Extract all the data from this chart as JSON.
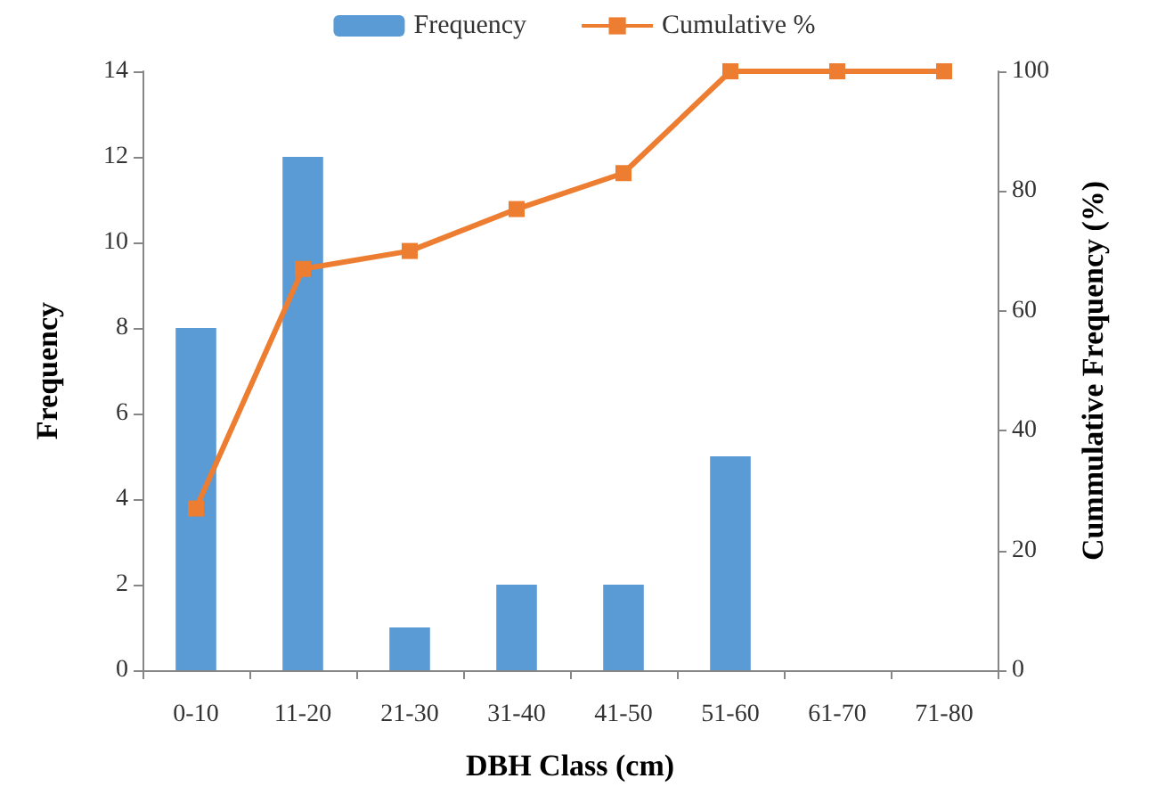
{
  "chart_data": {
    "type": "bar",
    "xlabel": "DBH Class (cm)",
    "ylabel": "Frequency",
    "y2label": "Cummulative Frequency (%)",
    "categories": [
      "0-10",
      "11-20",
      "21-30",
      "31-40",
      "41-50",
      "51-60",
      "61-70",
      "71-80"
    ],
    "series": [
      {
        "name": "Frequency",
        "color": "#5b9bd5",
        "values": [
          8,
          12,
          1,
          2,
          2,
          5,
          0,
          0
        ]
      },
      {
        "name": "Cumulative %",
        "type": "line",
        "axis": "y2",
        "color": "#ed7d31",
        "marker": "square",
        "values": [
          27,
          67,
          70,
          77,
          83,
          100,
          100,
          100
        ]
      }
    ],
    "ylim": [
      0,
      14
    ],
    "yticks": [
      0,
      2,
      4,
      6,
      8,
      10,
      12,
      14
    ],
    "y2lim": [
      0,
      100
    ],
    "y2ticks": [
      0,
      20,
      40,
      60,
      80,
      100
    ],
    "grid": false,
    "legend": "top"
  }
}
